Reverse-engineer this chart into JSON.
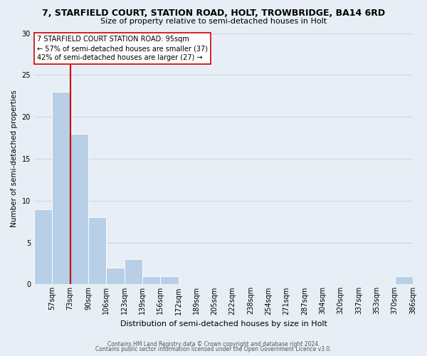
{
  "title": "7, STARFIELD COURT, STATION ROAD, HOLT, TROWBRIDGE, BA14 6RD",
  "subtitle": "Size of property relative to semi-detached houses in Holt",
  "xlabel": "Distribution of semi-detached houses by size in Holt",
  "ylabel": "Number of semi-detached properties",
  "bin_labels": [
    "57sqm",
    "73sqm",
    "90sqm",
    "106sqm",
    "123sqm",
    "139sqm",
    "156sqm",
    "172sqm",
    "189sqm",
    "205sqm",
    "222sqm",
    "238sqm",
    "254sqm",
    "271sqm",
    "287sqm",
    "304sqm",
    "320sqm",
    "337sqm",
    "353sqm",
    "370sqm",
    "386sqm"
  ],
  "bar_values": [
    9,
    23,
    18,
    8,
    2,
    3,
    1,
    1,
    0,
    0,
    0,
    0,
    0,
    0,
    0,
    0,
    0,
    0,
    0,
    0,
    1
  ],
  "bar_color": "#b8cfe8",
  "bar_edge_color": "#ffffff",
  "vline_x": 2,
  "vline_color": "#cc0000",
  "ylim": [
    0,
    30
  ],
  "yticks": [
    0,
    5,
    10,
    15,
    20,
    25,
    30
  ],
  "annotation_title": "7 STARFIELD COURT STATION ROAD: 95sqm",
  "annotation_line1": "← 57% of semi-detached houses are smaller (37)",
  "annotation_line2": "42% of semi-detached houses are larger (27) →",
  "annotation_box_facecolor": "#ffffff",
  "annotation_box_edgecolor": "#cc0000",
  "footer_line1": "Contains HM Land Registry data © Crown copyright and database right 2024.",
  "footer_line2": "Contains public sector information licensed under the Open Government Licence v3.0.",
  "grid_color": "#ccd8e8",
  "background_color": "#e8eef5",
  "title_fontsize": 9,
  "subtitle_fontsize": 8,
  "xlabel_fontsize": 8,
  "ylabel_fontsize": 7.5,
  "tick_fontsize": 7,
  "footer_fontsize": 5.5
}
